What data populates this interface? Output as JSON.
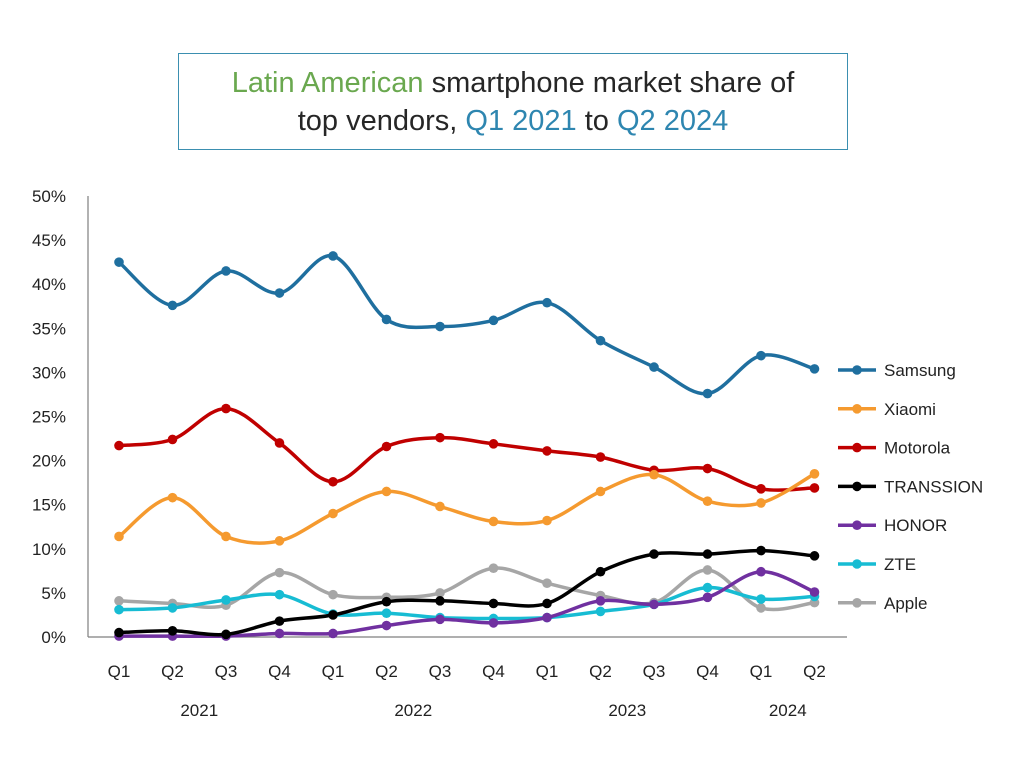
{
  "chart_data": {
    "type": "line",
    "title": {
      "line1": [
        {
          "text": "Latin American",
          "style": "green"
        },
        {
          "text": " smartphone market share of",
          "style": "plain"
        }
      ],
      "line2": [
        {
          "text": "top vendors, ",
          "style": "plain"
        },
        {
          "text": "Q1 2021",
          "style": "blue"
        },
        {
          "text": " to ",
          "style": "plain"
        },
        {
          "text": "Q2 2024",
          "style": "blue"
        }
      ]
    },
    "x": [
      "Q1",
      "Q2",
      "Q3",
      "Q4",
      "Q1",
      "Q2",
      "Q3",
      "Q4",
      "Q1",
      "Q2",
      "Q3",
      "Q4",
      "Q1",
      "Q2"
    ],
    "x_groups": [
      {
        "label": "2021",
        "from": 0,
        "to": 3
      },
      {
        "label": "2022",
        "from": 4,
        "to": 7
      },
      {
        "label": "2023",
        "from": 8,
        "to": 11
      },
      {
        "label": "2024",
        "from": 12,
        "to": 13
      }
    ],
    "yticks": [
      "0%",
      "5%",
      "10%",
      "15%",
      "20%",
      "25%",
      "30%",
      "35%",
      "40%",
      "45%",
      "50%"
    ],
    "ylim": [
      0,
      50
    ],
    "grid": false,
    "legend_position": "right",
    "series": [
      {
        "name": "Samsung",
        "color": "#1f6f9f",
        "values": [
          42.5,
          37.6,
          41.5,
          39.0,
          43.2,
          36.0,
          35.2,
          35.9,
          37.9,
          33.6,
          30.6,
          27.6,
          31.9,
          30.4
        ]
      },
      {
        "name": "Xiaomi",
        "color": "#f59a2f",
        "values": [
          11.4,
          15.8,
          11.4,
          10.9,
          14.0,
          16.5,
          14.8,
          13.1,
          13.2,
          16.5,
          18.4,
          15.4,
          15.2,
          18.5
        ]
      },
      {
        "name": "Motorola",
        "color": "#c00000",
        "values": [
          21.7,
          22.4,
          25.9,
          22.0,
          17.6,
          21.6,
          22.6,
          21.9,
          21.1,
          20.4,
          18.9,
          19.1,
          16.8,
          16.9
        ]
      },
      {
        "name": "TRANSSION",
        "color": "#000000",
        "values": [
          0.5,
          0.7,
          0.3,
          1.8,
          2.5,
          4.0,
          4.1,
          3.8,
          3.8,
          7.4,
          9.4,
          9.4,
          9.8,
          9.2
        ]
      },
      {
        "name": "HONOR",
        "color": "#7030a0",
        "values": [
          0.1,
          0.1,
          0.1,
          0.4,
          0.4,
          1.3,
          2.0,
          1.6,
          2.2,
          4.1,
          3.7,
          4.5,
          7.4,
          5.1
        ]
      },
      {
        "name": "ZTE",
        "color": "#17bcd3",
        "values": [
          3.1,
          3.3,
          4.2,
          4.8,
          2.6,
          2.7,
          2.2,
          2.1,
          2.2,
          2.9,
          3.7,
          5.6,
          4.3,
          4.6
        ]
      },
      {
        "name": "Apple",
        "color": "#a6a6a6",
        "values": [
          4.1,
          3.8,
          3.6,
          7.3,
          4.8,
          4.5,
          5.0,
          7.8,
          6.1,
          4.7,
          3.9,
          7.6,
          3.3,
          3.9
        ]
      }
    ]
  }
}
